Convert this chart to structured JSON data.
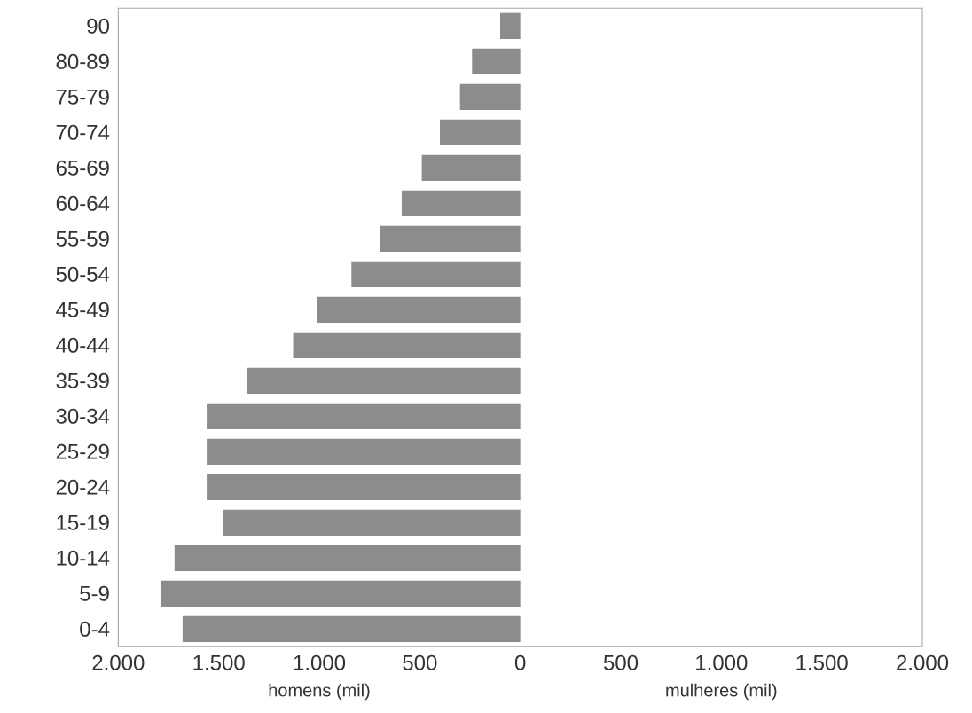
{
  "chart_data": {
    "type": "bar",
    "orientation": "horizontal",
    "categories": [
      "90",
      "80-89",
      "75-79",
      "70-74",
      "65-69",
      "60-64",
      "55-59",
      "50-54",
      "45-49",
      "40-44",
      "35-39",
      "30-34",
      "25-29",
      "20-24",
      "15-19",
      "10-14",
      "5-9",
      "0-4"
    ],
    "values": [
      -100,
      -240,
      -300,
      -400,
      -490,
      -590,
      -700,
      -840,
      -1010,
      -1130,
      -1360,
      -1560,
      -1560,
      -1560,
      -1480,
      -1720,
      -1790,
      -1680
    ],
    "color": "#8c8c8c",
    "xlim": [
      -2000,
      2000
    ],
    "xticks": [
      {
        "value": -2000,
        "label": "2.000"
      },
      {
        "value": -1500,
        "label": "1.500"
      },
      {
        "value": -1000,
        "label": "1.000"
      },
      {
        "value": -500,
        "label": "500"
      },
      0,
      500,
      {
        "value": 1000,
        "label": "1.000"
      },
      {
        "value": 1500,
        "label": "1.500"
      },
      {
        "value": 2000,
        "label": "2.000"
      }
    ],
    "annotations": [
      "homens (mil)",
      "mulheres (mil)"
    ],
    "grid": false
  }
}
